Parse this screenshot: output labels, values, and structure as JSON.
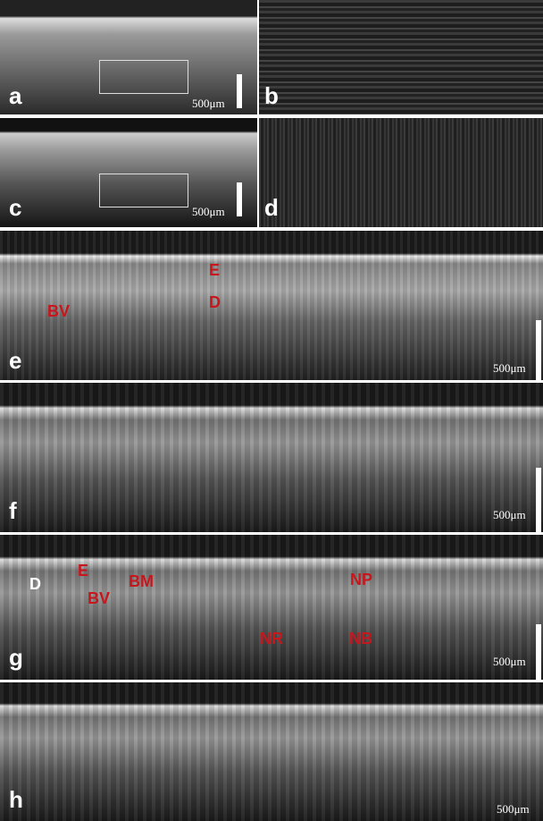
{
  "panels": [
    {
      "label": "a",
      "scale_label": "500μm"
    },
    {
      "label": "b"
    },
    {
      "label": "c",
      "scale_label": "500μm"
    },
    {
      "label": "d"
    },
    {
      "label": "e",
      "scale_label": "500μm",
      "annotations": [
        "E",
        "D",
        "BV"
      ]
    },
    {
      "label": "f",
      "scale_label": "500μm"
    },
    {
      "label": "g",
      "scale_label": "500μm",
      "annotations": [
        "D",
        "E",
        "BM",
        "BV",
        "NP",
        "NR",
        "NB"
      ]
    },
    {
      "label": "h",
      "scale_label": "500μm"
    }
  ]
}
